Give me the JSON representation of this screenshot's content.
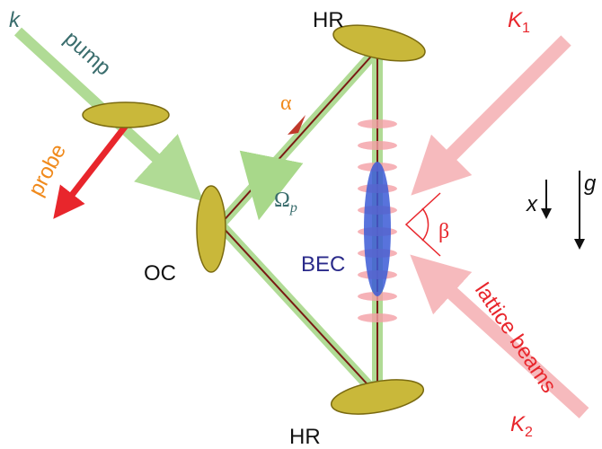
{
  "labels": {
    "k": "k",
    "pump": "pump",
    "probe": "probe",
    "hr_top": "HR",
    "hr_bottom": "HR",
    "oc": "OC",
    "alpha": "α",
    "omega": {
      "main": "Ω",
      "sub": "p"
    },
    "bec": "BEC",
    "k1": {
      "main": "K",
      "sub": "1"
    },
    "k2": {
      "main": "K",
      "sub": "2"
    },
    "x": "x",
    "g": "g",
    "beta": "β",
    "lattice": "lattice beams"
  }
}
